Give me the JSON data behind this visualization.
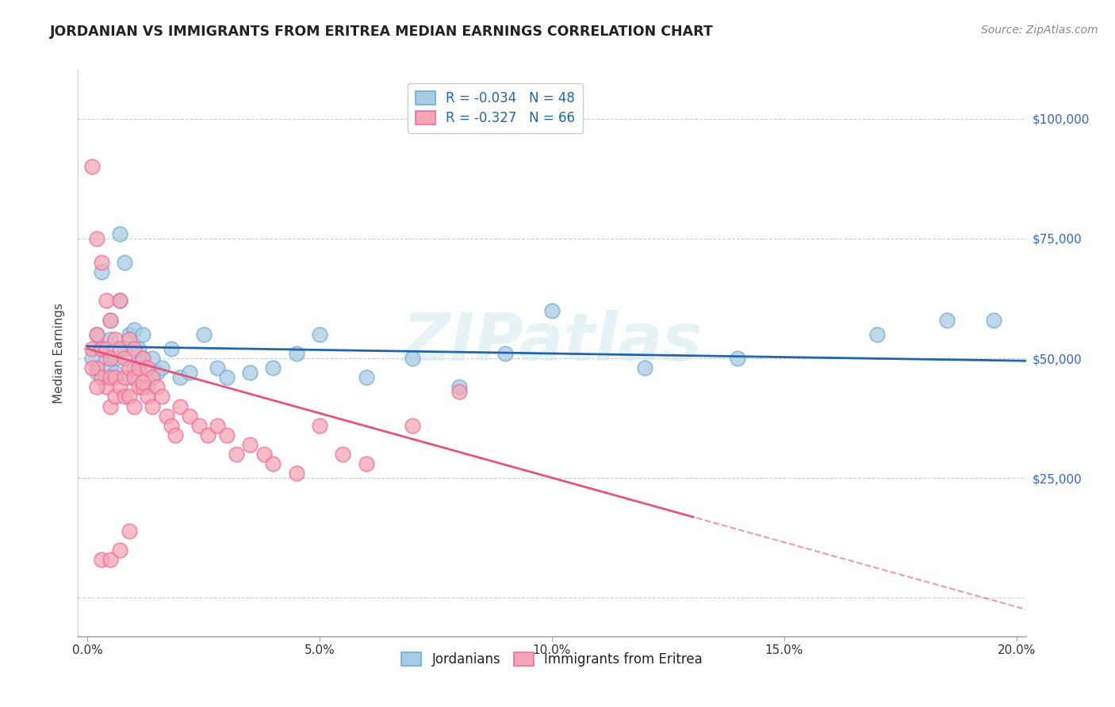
{
  "title": "JORDANIAN VS IMMIGRANTS FROM ERITREA MEDIAN EARNINGS CORRELATION CHART",
  "source": "Source: ZipAtlas.com",
  "ylabel": "Median Earnings",
  "xlim": [
    -0.002,
    0.202
  ],
  "ylim": [
    -8000,
    110000
  ],
  "blue_R": -0.034,
  "blue_N": 48,
  "pink_R": -0.327,
  "pink_N": 66,
  "blue_color": "#a8cce4",
  "pink_color": "#f4a7b3",
  "blue_edge_color": "#6baed6",
  "pink_edge_color": "#f768a1",
  "blue_line_color": "#2166ac",
  "pink_line_color": "#e8537a",
  "tick_color": "#3366cc",
  "watermark": "ZIPatlas",
  "legend_blue_label": "Jordanians",
  "legend_pink_label": "Immigrants from Eritrea",
  "blue_scatter_x": [
    0.001,
    0.002,
    0.002,
    0.003,
    0.003,
    0.004,
    0.004,
    0.005,
    0.005,
    0.005,
    0.006,
    0.006,
    0.007,
    0.007,
    0.008,
    0.008,
    0.009,
    0.009,
    0.01,
    0.01,
    0.011,
    0.011,
    0.012,
    0.012,
    0.013,
    0.014,
    0.015,
    0.016,
    0.018,
    0.02,
    0.022,
    0.025,
    0.028,
    0.03,
    0.035,
    0.04,
    0.045,
    0.05,
    0.06,
    0.07,
    0.08,
    0.09,
    0.1,
    0.12,
    0.14,
    0.17,
    0.185,
    0.195
  ],
  "blue_scatter_y": [
    50000,
    55000,
    47000,
    68000,
    52000,
    50000,
    46000,
    54000,
    58000,
    48000,
    50000,
    47000,
    76000,
    62000,
    70000,
    52000,
    55000,
    46000,
    56000,
    48000,
    52000,
    49000,
    50000,
    55000,
    44000,
    50000,
    47000,
    48000,
    52000,
    46000,
    47000,
    55000,
    48000,
    46000,
    47000,
    48000,
    51000,
    55000,
    46000,
    50000,
    44000,
    51000,
    60000,
    48000,
    50000,
    55000,
    58000,
    58000
  ],
  "pink_scatter_x": [
    0.001,
    0.001,
    0.002,
    0.002,
    0.002,
    0.003,
    0.003,
    0.003,
    0.004,
    0.004,
    0.004,
    0.005,
    0.005,
    0.005,
    0.005,
    0.006,
    0.006,
    0.006,
    0.007,
    0.007,
    0.007,
    0.008,
    0.008,
    0.008,
    0.009,
    0.009,
    0.009,
    0.01,
    0.01,
    0.01,
    0.011,
    0.011,
    0.012,
    0.012,
    0.013,
    0.013,
    0.014,
    0.014,
    0.015,
    0.016,
    0.017,
    0.018,
    0.019,
    0.02,
    0.022,
    0.024,
    0.026,
    0.028,
    0.03,
    0.032,
    0.035,
    0.038,
    0.04,
    0.045,
    0.05,
    0.055,
    0.06,
    0.07,
    0.08,
    0.001,
    0.002,
    0.003,
    0.005,
    0.007,
    0.009,
    0.012
  ],
  "pink_scatter_y": [
    90000,
    52000,
    75000,
    55000,
    48000,
    70000,
    52000,
    46000,
    62000,
    52000,
    44000,
    58000,
    50000,
    46000,
    40000,
    54000,
    46000,
    42000,
    62000,
    52000,
    44000,
    50000,
    46000,
    42000,
    54000,
    48000,
    42000,
    52000,
    46000,
    40000,
    48000,
    44000,
    50000,
    44000,
    48000,
    42000,
    46000,
    40000,
    44000,
    42000,
    38000,
    36000,
    34000,
    40000,
    38000,
    36000,
    34000,
    36000,
    34000,
    30000,
    32000,
    30000,
    28000,
    26000,
    36000,
    30000,
    28000,
    36000,
    43000,
    48000,
    44000,
    8000,
    8000,
    10000,
    14000,
    45000
  ]
}
